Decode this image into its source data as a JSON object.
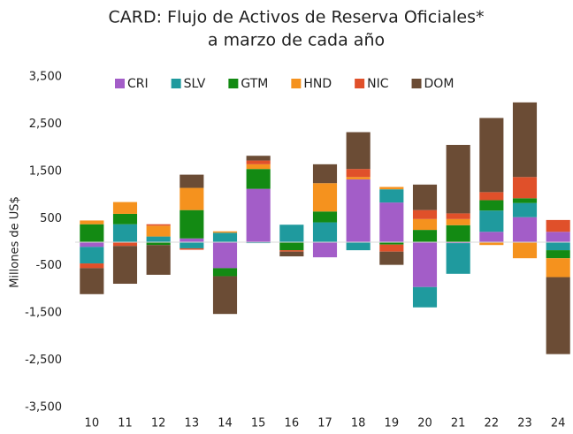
{
  "chart_data": {
    "type": "stacked_bar",
    "title": "CARD: Flujo de Activos de Reserva Oficiales*",
    "subtitle": "a marzo de cada año",
    "y_label": "Millones de US$",
    "categories": [
      "10",
      "11",
      "12",
      "13",
      "14",
      "15",
      "16",
      "17",
      "18",
      "19",
      "20",
      "21",
      "22",
      "23",
      "24"
    ],
    "series": [
      {
        "name": "CRI",
        "color": "#a35dc8",
        "values": [
          -100,
          0,
          0,
          80,
          -550,
          1130,
          0,
          -320,
          1330,
          840,
          -950,
          -20,
          220,
          530,
          220
        ]
      },
      {
        "name": "SLV",
        "color": "#1f9a9e",
        "values": [
          -350,
          380,
          120,
          -130,
          200,
          -20,
          370,
          420,
          -170,
          280,
          -430,
          -650,
          450,
          300,
          -170
        ]
      },
      {
        "name": "GTM",
        "color": "#138a13",
        "values": [
          380,
          220,
          -60,
          600,
          -170,
          420,
          -170,
          230,
          0,
          -50,
          260,
          360,
          220,
          100,
          -170
        ]
      },
      {
        "name": "HND",
        "color": "#f5921e",
        "values": [
          80,
          250,
          230,
          470,
          30,
          100,
          0,
          600,
          50,
          50,
          230,
          130,
          -60,
          -340,
          -400
        ]
      },
      {
        "name": "NIC",
        "color": "#e0502a",
        "values": [
          -100,
          -80,
          30,
          -30,
          0,
          80,
          -30,
          0,
          170,
          -150,
          190,
          120,
          170,
          450,
          250
        ]
      },
      {
        "name": "DOM",
        "color": "#6b4c35",
        "values": [
          -550,
          -800,
          -630,
          280,
          -800,
          100,
          -100,
          400,
          780,
          -280,
          540,
          1450,
          1570,
          1580,
          -1630
        ]
      }
    ],
    "ylim": [
      -3500,
      3500
    ],
    "yticks": [
      {
        "value": -3500,
        "label": "-3,500"
      },
      {
        "value": -2500,
        "label": "-2,500"
      },
      {
        "value": -1500,
        "label": "-1,500"
      },
      -500,
      500,
      {
        "value": 1500,
        "label": "1,500"
      },
      {
        "value": 2500,
        "label": "2,500"
      },
      {
        "value": 3500,
        "label": "3,500"
      }
    ],
    "legend": "top"
  }
}
